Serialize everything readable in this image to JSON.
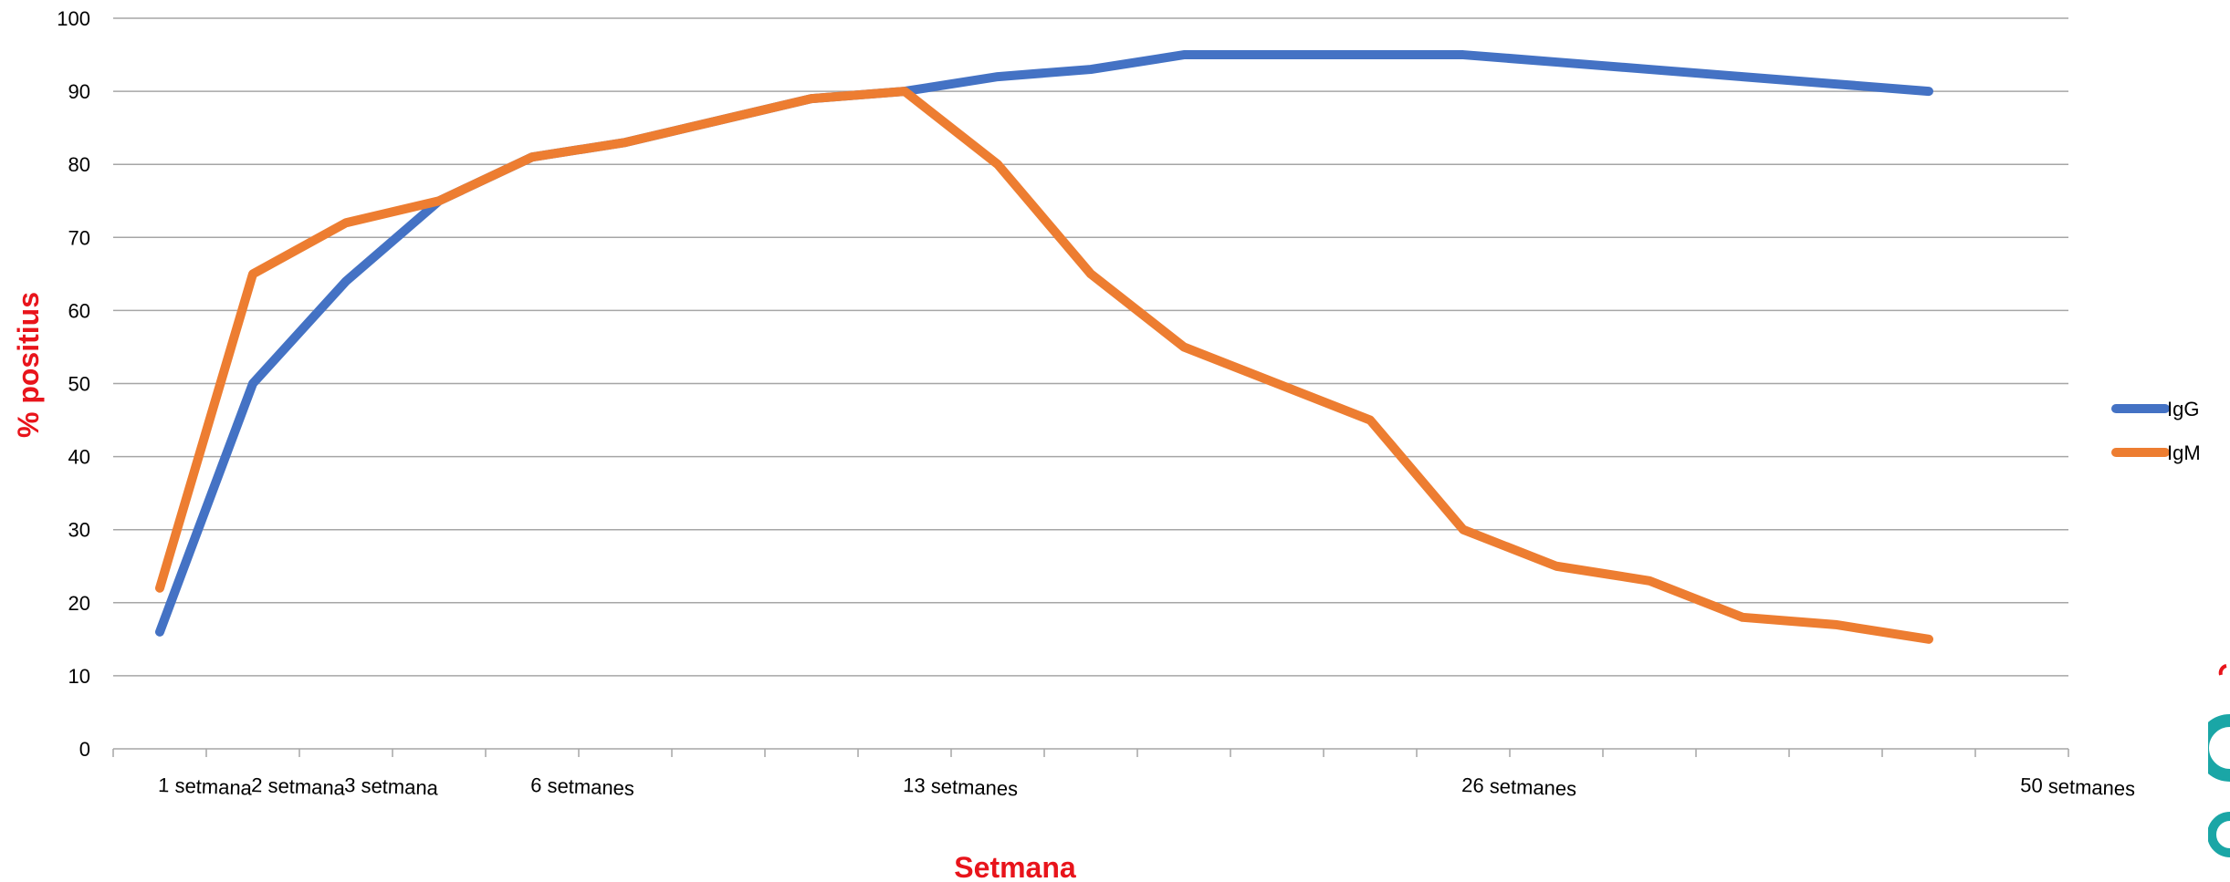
{
  "chart_data": {
    "type": "line",
    "title": "",
    "xlabel": "Setmana",
    "ylabel": "% positius",
    "ylim": [
      0,
      100
    ],
    "yticks": [
      0,
      10,
      20,
      30,
      40,
      50,
      60,
      70,
      80,
      90,
      100
    ],
    "grid": true,
    "legend_position": "right",
    "categories": [
      "1 setmana",
      "2 setmana",
      "3 setmana",
      "",
      "6 setmanes",
      "",
      "",
      "",
      "13 setmanes",
      "",
      "",
      "",
      "",
      "",
      "26 setmanes",
      "",
      "",
      "",
      "",
      "",
      "50 setmanes"
    ],
    "series": [
      {
        "name": "IgG",
        "color": "#4472c4",
        "values": [
          16,
          50,
          64,
          75,
          81,
          83,
          86,
          89,
          90,
          92,
          93,
          95,
          95,
          95,
          95,
          94,
          93,
          92,
          91,
          90,
          null
        ]
      },
      {
        "name": "IgM",
        "color": "#ed7d31",
        "values": [
          22,
          65,
          72,
          75,
          81,
          83,
          86,
          89,
          90,
          80,
          65,
          55,
          50,
          45,
          30,
          25,
          23,
          18,
          17,
          15,
          null
        ]
      }
    ]
  }
}
